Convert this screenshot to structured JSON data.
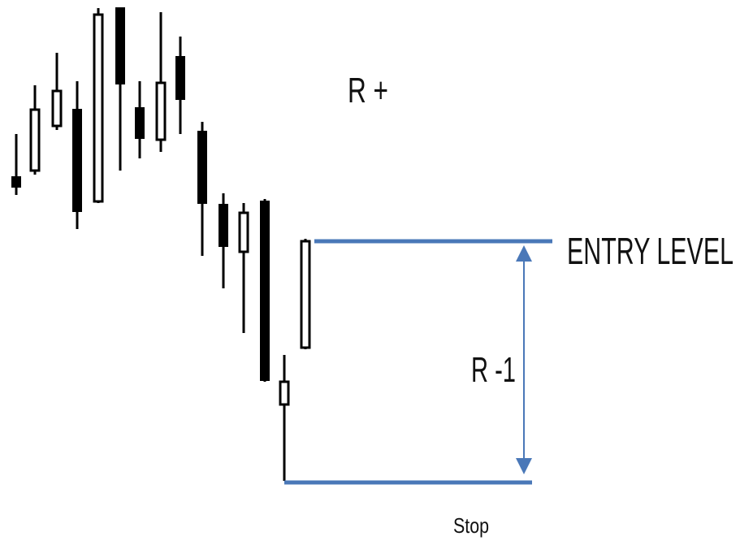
{
  "labels": {
    "reward": "R +",
    "entry": "ENTRY LEVEL",
    "risk": "R -1",
    "stop": "Stop"
  }
}
